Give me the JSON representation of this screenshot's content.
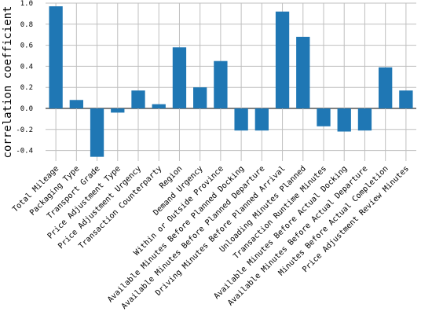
{
  "chart_data": {
    "type": "bar",
    "title": "",
    "xlabel": "",
    "ylabel": "correlation coefficient",
    "ylim": [
      -0.5,
      1.0
    ],
    "yticks": [
      "1.0",
      "0.8",
      "0.6",
      "0.4",
      "0.2",
      "0.0",
      "-0.2",
      "-0.4"
    ],
    "grid": true,
    "bar_color": "#1f77b4",
    "categories": [
      "Total Mileage",
      "Packaging Type",
      "Transport Grade",
      "Price Adjustment Type",
      "Price Adjustment Urgency",
      "Transaction Counterparty",
      "Region",
      "Demand Urgency",
      "Within or Outside Province",
      "Available Minutes Before Planned Docking",
      "Available Minutes Before Planned Departure",
      "Driving Minutes Before Planned Arrival",
      "Unloading Minutes Planned",
      "Transaction Runtime Minutes",
      "Available Minutes Before Actual Docking",
      "Available Minutes Before Actual Departure",
      "Minutes Before Actual Completion",
      "Price Adjustment Review Minutes"
    ],
    "values": [
      0.97,
      0.08,
      -0.46,
      -0.04,
      0.17,
      0.04,
      0.58,
      0.2,
      0.45,
      -0.21,
      -0.21,
      0.92,
      0.68,
      -0.17,
      -0.22,
      -0.21,
      0.39,
      0.17
    ]
  }
}
